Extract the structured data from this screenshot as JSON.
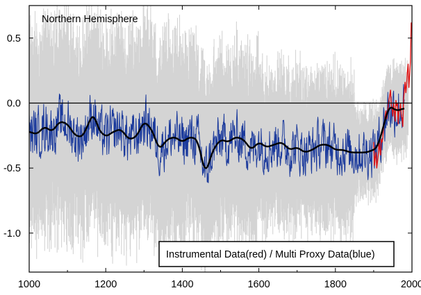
{
  "chart_data": {
    "type": "line",
    "title": "Northern Hemisphere",
    "xlabel": "",
    "ylabel": "",
    "xlim": [
      1000,
      2000
    ],
    "ylim": [
      -1.3,
      0.75
    ],
    "x_ticks": [
      1000,
      1200,
      1400,
      1600,
      1800,
      2000
    ],
    "x_tick_labels": [
      "1000",
      "1200",
      "1400",
      "1600",
      "1800",
      "2000"
    ],
    "y_ticks": [
      0.5,
      0.0,
      -0.5,
      -1.0
    ],
    "y_tick_labels": [
      "0.5",
      "0.0",
      "-0.5",
      "-1.0"
    ],
    "zero_line": 0.0,
    "legend_text": "Instrumental Data(red) / Multi Proxy Data(blue)",
    "legend_position": "bottom-right",
    "grid": false,
    "colors": {
      "uncertainty": "#d4d4d4",
      "proxy": "#1b3a9c",
      "instrumental": "#e01414",
      "smooth": "#000000",
      "zero_line": "#000000"
    },
    "series": [
      {
        "name": "Instrumental Data",
        "color": "red",
        "x": [
          1900,
          1902,
          1904,
          1906,
          1908,
          1910,
          1912,
          1914,
          1916,
          1918,
          1920,
          1922,
          1924,
          1926,
          1928,
          1930,
          1932,
          1934,
          1936,
          1938,
          1940,
          1942,
          1944,
          1946,
          1948,
          1950,
          1952,
          1954,
          1956,
          1958,
          1960,
          1962,
          1964,
          1966,
          1968,
          1970,
          1972,
          1974,
          1976,
          1978,
          1980,
          1982,
          1984,
          1986,
          1988,
          1990,
          1992,
          1994,
          1996,
          1998
        ],
        "y": [
          -0.3,
          -0.48,
          -0.42,
          -0.38,
          -0.5,
          -0.45,
          -0.4,
          -0.3,
          -0.36,
          -0.4,
          -0.28,
          -0.3,
          -0.26,
          -0.18,
          -0.16,
          -0.1,
          -0.06,
          -0.12,
          -0.08,
          -0.02,
          0.02,
          0.06,
          0.1,
          -0.02,
          -0.04,
          -0.1,
          0.0,
          -0.06,
          -0.14,
          0.02,
          -0.02,
          0.0,
          -0.16,
          -0.06,
          -0.06,
          0.0,
          -0.1,
          -0.12,
          -0.18,
          0.02,
          0.1,
          0.16,
          0.08,
          0.14,
          0.24,
          0.3,
          0.12,
          0.22,
          0.32,
          0.62
        ]
      }
    ],
    "proxy_series": {
      "name": "Multi Proxy Data",
      "color": "blue",
      "x_range": [
        1000,
        1980
      ],
      "smooth_anchors": {
        "x": [
          1000,
          1020,
          1040,
          1060,
          1080,
          1100,
          1120,
          1140,
          1160,
          1170,
          1180,
          1200,
          1220,
          1240,
          1260,
          1280,
          1300,
          1320,
          1340,
          1360,
          1380,
          1400,
          1420,
          1440,
          1460,
          1480,
          1500,
          1520,
          1540,
          1560,
          1580,
          1600,
          1620,
          1640,
          1660,
          1680,
          1700,
          1720,
          1740,
          1760,
          1780,
          1800,
          1820,
          1840,
          1860,
          1880,
          1900,
          1910,
          1920,
          1940,
          1960,
          1980
        ],
        "y": [
          -0.22,
          -0.24,
          -0.18,
          -0.22,
          -0.14,
          -0.16,
          -0.25,
          -0.26,
          -0.12,
          -0.08,
          -0.2,
          -0.26,
          -0.22,
          -0.2,
          -0.28,
          -0.26,
          -0.14,
          -0.2,
          -0.36,
          -0.28,
          -0.26,
          -0.3,
          -0.26,
          -0.28,
          -0.55,
          -0.36,
          -0.28,
          -0.3,
          -0.26,
          -0.28,
          -0.36,
          -0.3,
          -0.34,
          -0.32,
          -0.3,
          -0.36,
          -0.34,
          -0.38,
          -0.36,
          -0.32,
          -0.32,
          -0.36,
          -0.36,
          -0.38,
          -0.38,
          -0.38,
          -0.36,
          -0.34,
          -0.24,
          -0.02,
          -0.06,
          -0.04
        ]
      }
    }
  }
}
